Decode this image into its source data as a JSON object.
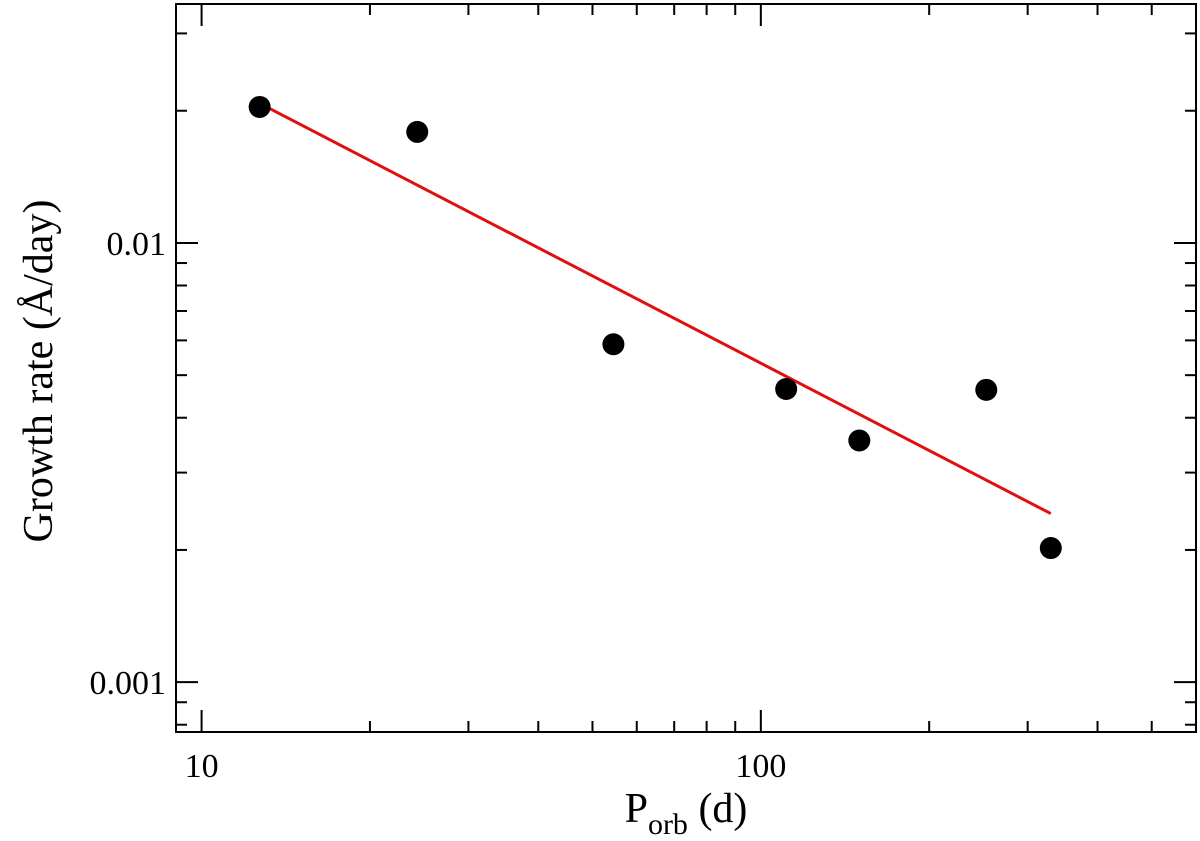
{
  "chart_data": {
    "type": "scatter",
    "xlabel": {
      "main": "P",
      "sub": "orb",
      "rest": " (d)"
    },
    "ylabel": "Growth rate (Å/day)",
    "xscale": "log",
    "yscale": "log",
    "xlim": [
      9,
      600
    ],
    "ylim": [
      0.00077,
      0.035
    ],
    "x_ticks": [
      {
        "value": 10,
        "label": "10"
      },
      {
        "value": 100,
        "label": "100"
      }
    ],
    "y_ticks": [
      {
        "value": 0.001,
        "label": "0.001"
      },
      {
        "value": 0.01,
        "label": "0.01"
      }
    ],
    "grid": false,
    "legend": "none",
    "series": [
      {
        "kind": "points",
        "color": "#000000",
        "points": [
          {
            "x": 12.7,
            "y": 0.0204,
            "yerr": 0.0011
          },
          {
            "x": 24.3,
            "y": 0.0179,
            "yerr": 0.0009
          },
          {
            "x": 54.5,
            "y": 0.00588
          },
          {
            "x": 111,
            "y": 0.00465
          },
          {
            "x": 150,
            "y": 0.00355
          },
          {
            "x": 253,
            "y": 0.00463
          },
          {
            "x": 330,
            "y": 0.00202
          }
        ]
      },
      {
        "kind": "fit-line",
        "color": "#e01010",
        "points": [
          {
            "x": 12.7,
            "y": 0.0208
          },
          {
            "x": 330,
            "y": 0.00242
          }
        ]
      }
    ]
  }
}
